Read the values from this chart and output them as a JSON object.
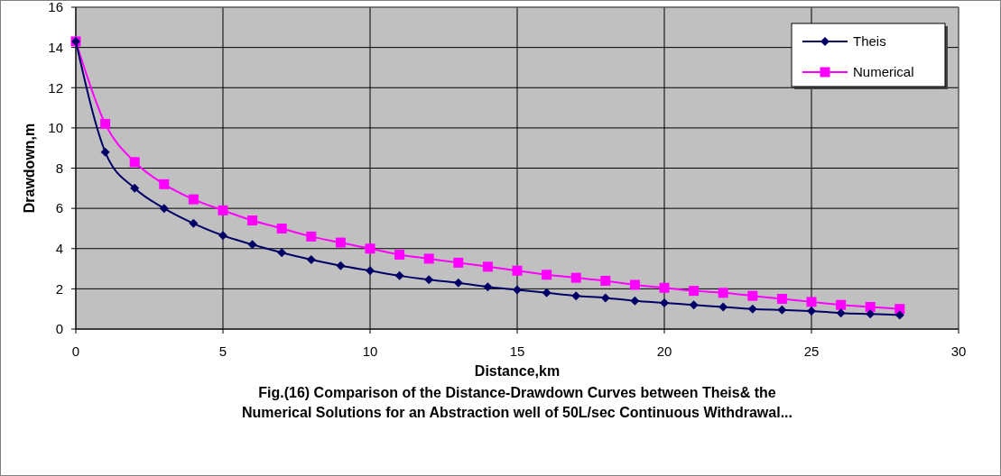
{
  "chart_data": {
    "type": "line",
    "title": "Fig.(16) Comparison of the Distance-Drawdown Curves between Theis& the\nNumerical Solutions for an  Abstraction well of 50L/sec Continuous Withdrawal...",
    "xlabel": "Distance,km",
    "ylabel": "Drawdown,m",
    "x": [
      0,
      1,
      2,
      3,
      4,
      5,
      6,
      7,
      8,
      9,
      10,
      11,
      12,
      13,
      14,
      15,
      16,
      17,
      18,
      19,
      20,
      21,
      22,
      23,
      24,
      25,
      26,
      27,
      28
    ],
    "series": [
      {
        "name": "Theis",
        "color": "#000066",
        "marker": "diamond",
        "values": [
          14.3,
          8.8,
          7.0,
          6.0,
          5.25,
          4.65,
          4.2,
          3.8,
          3.45,
          3.15,
          2.9,
          2.65,
          2.45,
          2.3,
          2.1,
          1.95,
          1.8,
          1.65,
          1.55,
          1.4,
          1.3,
          1.2,
          1.1,
          1.0,
          0.95,
          0.9,
          0.8,
          0.75,
          0.7
        ]
      },
      {
        "name": "Numerical",
        "color": "#ff00ff",
        "marker": "square",
        "values": [
          14.3,
          10.2,
          8.3,
          7.2,
          6.45,
          5.9,
          5.4,
          5.0,
          4.6,
          4.3,
          4.0,
          3.7,
          3.5,
          3.3,
          3.1,
          2.9,
          2.7,
          2.55,
          2.4,
          2.2,
          2.05,
          1.9,
          1.8,
          1.65,
          1.5,
          1.35,
          1.2,
          1.1,
          1.0
        ]
      }
    ],
    "xlim": [
      0,
      30
    ],
    "xticks": [
      0,
      5,
      10,
      15,
      20,
      25,
      30
    ],
    "ylim": [
      0,
      16
    ],
    "yticks": [
      0,
      2,
      4,
      6,
      8,
      10,
      12,
      14,
      16
    ],
    "grid": true,
    "legend": "top right"
  }
}
